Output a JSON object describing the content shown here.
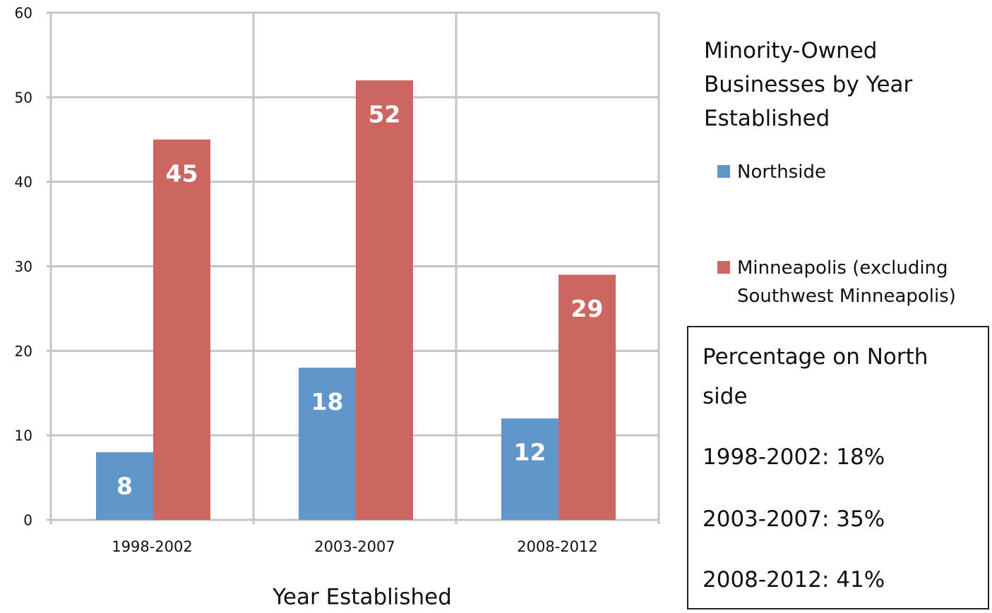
{
  "chart_data": {
    "type": "bar",
    "title": "Minority-Owned Businesses by Year Established",
    "x_label": "Year Established",
    "categories": [
      "1998-2002",
      "2003-2007",
      "2008-2012"
    ],
    "series": [
      {
        "name": "Northside",
        "color": "#6096c9",
        "values": [
          8,
          18,
          12
        ]
      },
      {
        "name": "Minneapolis (excluding Southwest Minneapolis)",
        "color": "#cc6660",
        "values": [
          45,
          52,
          29
        ]
      }
    ],
    "ylim": [
      0,
      60
    ],
    "yticks": [
      0,
      10,
      20,
      30,
      40,
      50,
      60
    ],
    "grid": true,
    "annotation": {
      "heading": "Percentage on North side",
      "lines": [
        "1998-2002: 18%",
        "2003-2007: 35%",
        "2008-2012: 41%"
      ]
    }
  }
}
